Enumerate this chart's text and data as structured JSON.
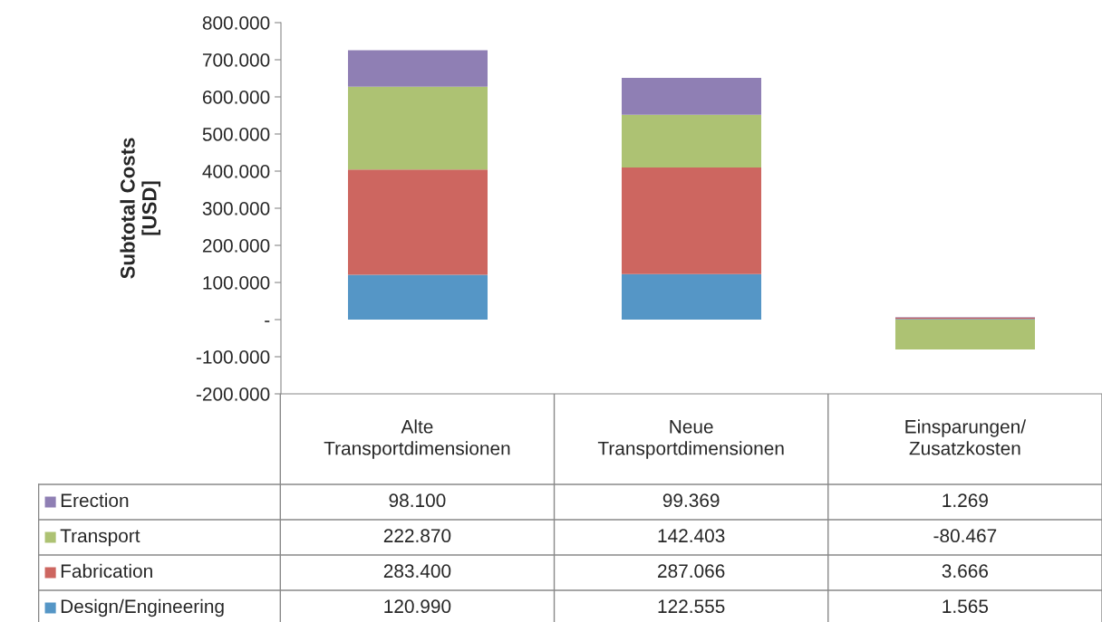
{
  "chart_data": {
    "type": "bar",
    "stacked": true,
    "ylabel": "Subtotal Costs\n[USD]",
    "legend": "bottom",
    "grid": false,
    "categories": [
      "Alte Transportdimensionen",
      "Neue Transportdimensionen",
      "Einsparungen/ Zusatzkosten"
    ],
    "series": [
      {
        "name": "Design/Engineering",
        "color": "#5596c6",
        "values": [
          120990,
          122555,
          1565
        ],
        "value_labels": [
          "120.990",
          "122.555",
          "1.565"
        ]
      },
      {
        "name": "Fabrication",
        "color": "#cd6660",
        "values": [
          283400,
          287066,
          3666
        ],
        "value_labels": [
          "283.400",
          "287.066",
          "3.666"
        ]
      },
      {
        "name": "Transport",
        "color": "#adc273",
        "values": [
          222870,
          142403,
          -80467
        ],
        "value_labels": [
          "222.870",
          "142.403",
          "-80.467"
        ]
      },
      {
        "name": "Erection",
        "color": "#8f7fb4",
        "values": [
          98100,
          99369,
          1269
        ],
        "value_labels": [
          "98.100",
          "99.369",
          "1.269"
        ]
      }
    ],
    "ylim": [
      -200000,
      800000
    ],
    "yticks": [
      {
        "value": -200000,
        "label": "-200.000"
      },
      {
        "value": -100000,
        "label": "-100.000"
      },
      {
        "value": 0,
        "label": "-"
      },
      {
        "value": 100000,
        "label": "100.000"
      },
      {
        "value": 200000,
        "label": "200.000"
      },
      {
        "value": 300000,
        "label": "300.000"
      },
      {
        "value": 400000,
        "label": "400.000"
      },
      {
        "value": 500000,
        "label": "500.000"
      },
      {
        "value": 600000,
        "label": "600.000"
      },
      {
        "value": 700000,
        "label": "700.000"
      },
      {
        "value": 800000,
        "label": "800.000"
      }
    ]
  }
}
